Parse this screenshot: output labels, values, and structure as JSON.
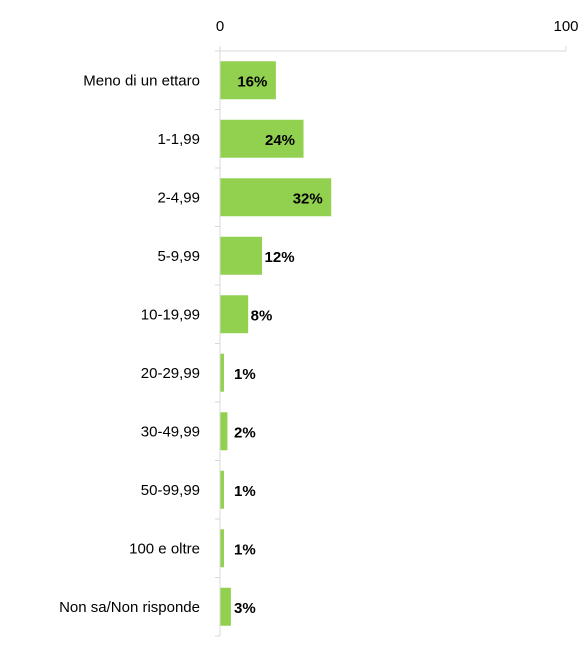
{
  "chart_data": {
    "type": "bar",
    "orientation": "horizontal",
    "categories": [
      "Meno di un ettaro",
      "1-1,99",
      "2-4,99",
      "5-9,99",
      "10-19,99",
      "20-29,99",
      "30-49,99",
      "50-99,99",
      "100 e oltre",
      "Non sa/Non risponde"
    ],
    "values": [
      16,
      24,
      32,
      12,
      8,
      1,
      2,
      1,
      1,
      3
    ],
    "data_labels": [
      "16%",
      "24%",
      "32%",
      "12%",
      "8%",
      "1%",
      "2%",
      "1%",
      "1%",
      "3%"
    ],
    "xlim": [
      0,
      100
    ],
    "x_ticks": [
      0,
      100
    ],
    "x_tick_labels": [
      "0",
      "100"
    ],
    "bar_color": "#92d050",
    "axis_color": "#d9d9d9",
    "grid": false,
    "legend": false
  }
}
